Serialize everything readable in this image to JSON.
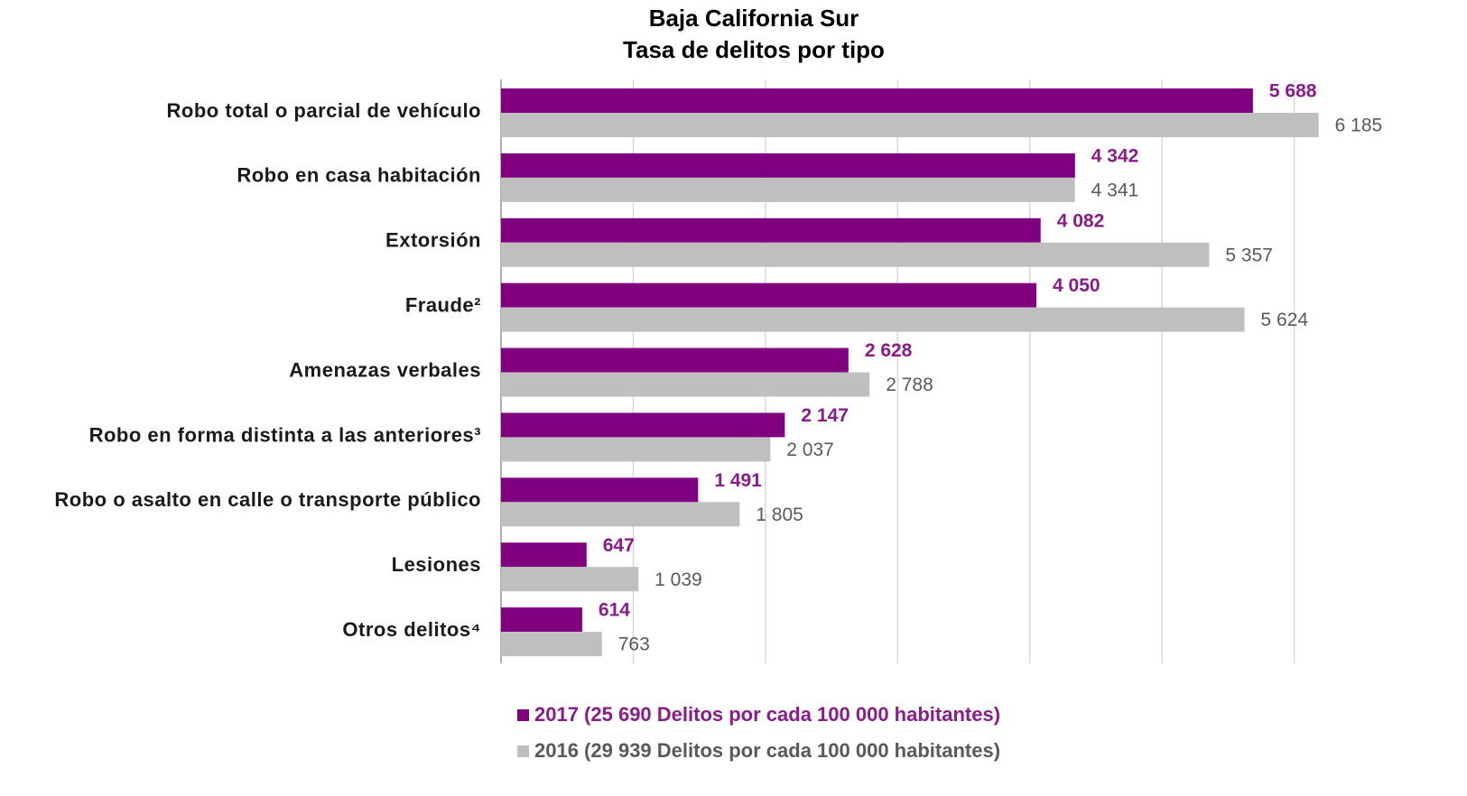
{
  "chart_data": {
    "type": "hbar",
    "title": [
      "Baja California Sur",
      "Tasa de delitos por tipo"
    ],
    "categories": [
      "Robo total o parcial de vehículo",
      "Robo en casa habitación",
      "Extorsión",
      "Fraude²",
      "Amenazas verbales",
      "Robo en forma distinta a las anteriores³",
      "Robo o asalto en calle o transporte público",
      "Lesiones",
      "Otros delitos⁴"
    ],
    "series": [
      {
        "name": "2017 (25 690 Delitos por cada 100 000 habitantes)",
        "color": "#800080",
        "label_color": "#8b1a8b",
        "values": [
          5688,
          4342,
          4082,
          4050,
          2628,
          2147,
          1491,
          647,
          614
        ],
        "value_labels": [
          "5 688",
          "4 342",
          "4 082",
          "4 050",
          "2 628",
          "2 147",
          "1 491",
          "647",
          "614"
        ]
      },
      {
        "name": "2016 (29 939 Delitos por cada 100 000 habitantes)",
        "color": "#bfbfbf",
        "label_color": "#595959",
        "values": [
          6185,
          4341,
          5357,
          5624,
          2788,
          2037,
          1805,
          1039,
          763
        ],
        "value_labels": [
          "6 185",
          "4 341",
          "5 357",
          "5 624",
          "2 788",
          "2 037",
          "1 805",
          "1 039",
          "763"
        ]
      }
    ],
    "xlim": [
      0,
      7000
    ],
    "xticks": [
      0,
      1000,
      2000,
      3000,
      4000,
      5000,
      6000
    ],
    "grid": true
  }
}
